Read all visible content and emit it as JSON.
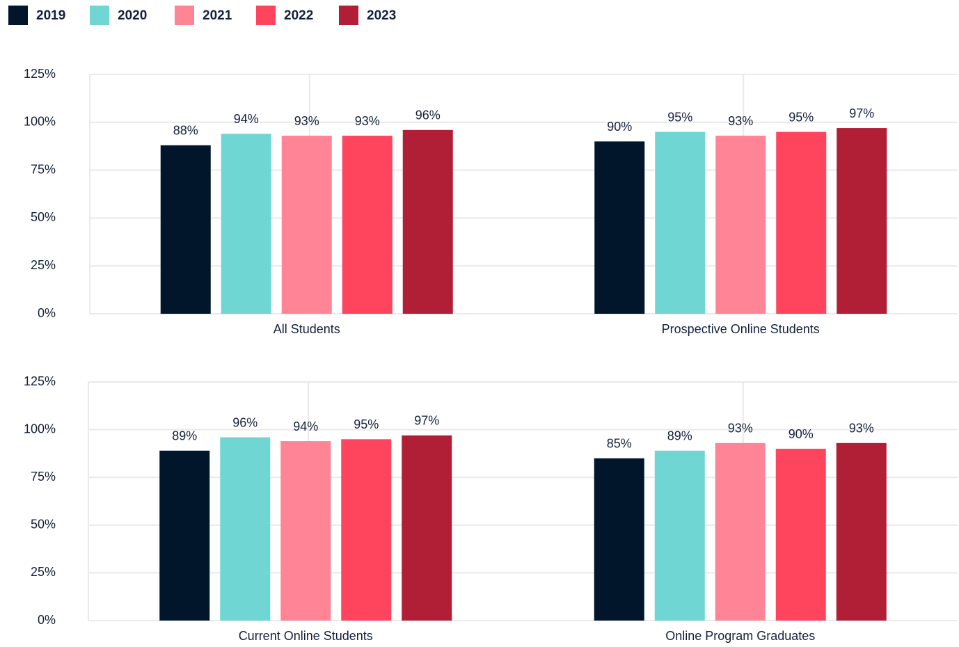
{
  "chart_data": {
    "type": "bar",
    "categories": [
      "All Students",
      "Prospective Online Students",
      "Current Online Students",
      "Online Program Graduates"
    ],
    "series": [
      {
        "name": "2019",
        "color": "#01152b",
        "values": [
          88,
          90,
          89,
          85
        ],
        "value_labels": [
          "88%",
          "90%",
          "89%",
          "85%"
        ]
      },
      {
        "name": "2020",
        "color": "#6fd6d3",
        "values": [
          94,
          95,
          96,
          89
        ],
        "value_labels": [
          "94%",
          "95%",
          "96%",
          "89%"
        ]
      },
      {
        "name": "2021",
        "color": "#ff8596",
        "values": [
          93,
          93,
          94,
          93
        ],
        "value_labels": [
          "93%",
          "93%",
          "94%",
          "93%"
        ]
      },
      {
        "name": "2022",
        "color": "#ff445e",
        "values": [
          93,
          95,
          95,
          90
        ],
        "value_labels": [
          "93%",
          "95%",
          "95%",
          "90%"
        ]
      },
      {
        "name": "2023",
        "color": "#b01f35",
        "values": [
          96,
          97,
          97,
          93
        ],
        "value_labels": [
          "96%",
          "97%",
          "97%",
          "93%"
        ]
      }
    ],
    "ylim": [
      0,
      125
    ],
    "yticks": [
      {
        "value": 0,
        "label": "0%"
      },
      {
        "value": 25,
        "label": "25%"
      },
      {
        "value": 50,
        "label": "50%"
      },
      {
        "value": 75,
        "label": "75%"
      },
      {
        "value": 100,
        "label": "100%"
      },
      {
        "value": 125,
        "label": "125%"
      }
    ],
    "grid": true,
    "legend": "top-left"
  }
}
